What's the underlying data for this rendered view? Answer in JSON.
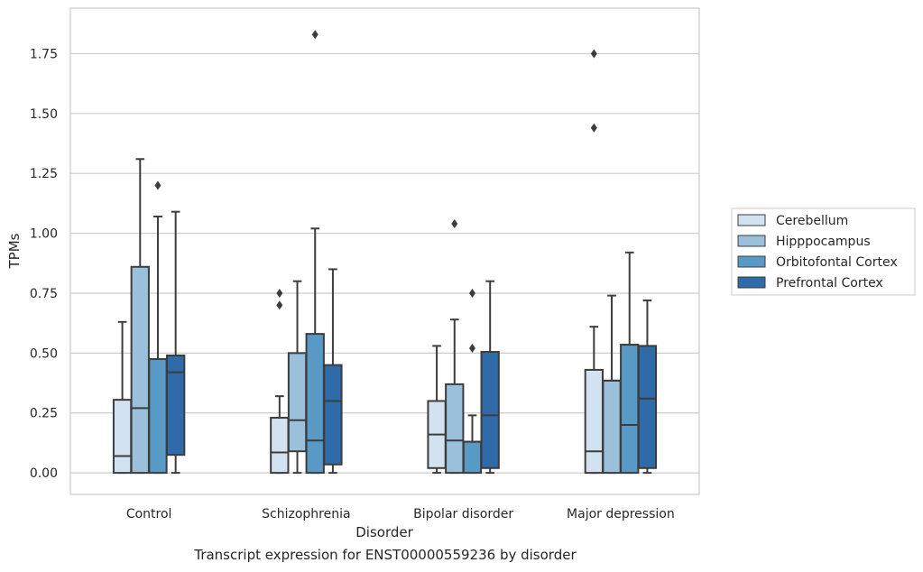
{
  "caption": "Transcript expression for ENST00000559236 by disorder",
  "chart_data": {
    "type": "boxplot",
    "xlabel": "Disorder",
    "ylabel": "TPMs",
    "ylim": [
      -0.09,
      1.94
    ],
    "yticks": [
      0.0,
      0.25,
      0.5,
      0.75,
      1.0,
      1.25,
      1.5,
      1.75
    ],
    "ytick_labels": [
      "0.00",
      "0.25",
      "0.50",
      "0.75",
      "1.00",
      "1.25",
      "1.50",
      "1.75"
    ],
    "grid": true,
    "legend_position": "right",
    "categories": [
      "Control",
      "Schizophrenia",
      "Bipolar disorder",
      "Major depression"
    ],
    "series": [
      {
        "name": "Cerebellum",
        "color": "#d3e2f0",
        "boxes": [
          {
            "whislo": 0.0,
            "q1": 0.0,
            "med": 0.07,
            "q3": 0.305,
            "whishi": 0.63,
            "fliers": []
          },
          {
            "whislo": 0.0,
            "q1": 0.0,
            "med": 0.085,
            "q3": 0.23,
            "whishi": 0.32,
            "fliers": [
              0.7,
              0.75
            ]
          },
          {
            "whislo": 0.0,
            "q1": 0.02,
            "med": 0.16,
            "q3": 0.3,
            "whishi": 0.53,
            "fliers": []
          },
          {
            "whislo": 0.0,
            "q1": 0.0,
            "med": 0.09,
            "q3": 0.43,
            "whishi": 0.61,
            "fliers": [
              1.44,
              1.75
            ]
          }
        ]
      },
      {
        "name": "Hipppocampus",
        "color": "#9ac0db",
        "boxes": [
          {
            "whislo": 0.0,
            "q1": 0.0,
            "med": 0.27,
            "q3": 0.86,
            "whishi": 1.31,
            "fliers": []
          },
          {
            "whislo": 0.0,
            "q1": 0.09,
            "med": 0.22,
            "q3": 0.5,
            "whishi": 0.8,
            "fliers": []
          },
          {
            "whislo": 0.0,
            "q1": 0.0,
            "med": 0.135,
            "q3": 0.37,
            "whishi": 0.64,
            "fliers": [
              1.04
            ]
          },
          {
            "whislo": 0.0,
            "q1": 0.0,
            "med": 0.385,
            "q3": 0.385,
            "whishi": 0.74,
            "fliers": []
          }
        ]
      },
      {
        "name": "Orbitofontal Cortex",
        "color": "#5899c6",
        "boxes": [
          {
            "whislo": 0.0,
            "q1": 0.0,
            "med": 0.475,
            "q3": 0.475,
            "whishi": 1.07,
            "fliers": [
              1.2
            ]
          },
          {
            "whislo": 0.0,
            "q1": 0.0,
            "med": 0.135,
            "q3": 0.58,
            "whishi": 1.02,
            "fliers": [
              1.83
            ]
          },
          {
            "whislo": 0.0,
            "q1": 0.0,
            "med": 0.13,
            "q3": 0.13,
            "whishi": 0.24,
            "fliers": [
              0.52,
              0.75
            ]
          },
          {
            "whislo": 0.0,
            "q1": 0.0,
            "med": 0.2,
            "q3": 0.535,
            "whishi": 0.92,
            "fliers": []
          }
        ]
      },
      {
        "name": "Prefrontal Cortex",
        "color": "#2e6ba8",
        "boxes": [
          {
            "whislo": 0.0,
            "q1": 0.075,
            "med": 0.42,
            "q3": 0.49,
            "whishi": 1.09,
            "fliers": []
          },
          {
            "whislo": 0.0,
            "q1": 0.035,
            "med": 0.3,
            "q3": 0.45,
            "whishi": 0.85,
            "fliers": []
          },
          {
            "whislo": 0.0,
            "q1": 0.02,
            "med": 0.24,
            "q3": 0.505,
            "whishi": 0.8,
            "fliers": []
          },
          {
            "whislo": 0.0,
            "q1": 0.02,
            "med": 0.31,
            "q3": 0.53,
            "whishi": 0.72,
            "fliers": []
          }
        ]
      }
    ]
  }
}
